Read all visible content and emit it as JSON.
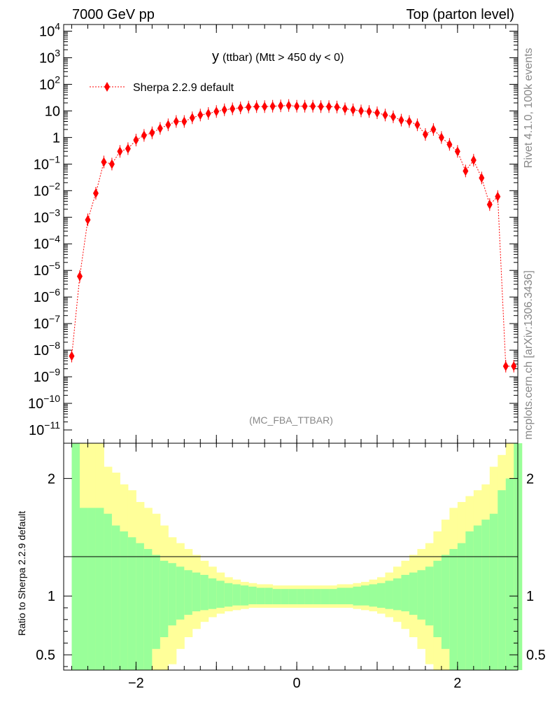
{
  "header": {
    "left": "7000 GeV pp",
    "right": "Top (parton level)"
  },
  "side_labels": {
    "rivet": "Rivet 4.1.0,  100k events",
    "mcplots": "mcplots.cern.ch [arXiv:1306.3436]"
  },
  "colors": {
    "series": "#ff0000",
    "band_inner": "#99ff99",
    "band_outer": "#ffff99"
  },
  "chart_data": [
    {
      "type": "scatter",
      "title_main": "y",
      "title_rest": " (ttbar) (Mtt > 450 dy < 0)",
      "watermark": "(MC_FBA_TTBAR)",
      "yscale": "log",
      "xlim": [
        -2.9,
        2.75
      ],
      "ylim_log10": [
        -11.5,
        4.25
      ],
      "legend": {
        "label": "Sherpa 2.2.9 default",
        "position": "top-left"
      },
      "ytick_labels": [
        {
          "exp": 4,
          "label": "10",
          "sup": "4"
        },
        {
          "exp": 3,
          "label": "10",
          "sup": "3"
        },
        {
          "exp": 2,
          "label": "10",
          "sup": "2"
        },
        {
          "exp": 1,
          "label": "10",
          "sup": ""
        },
        {
          "exp": 0,
          "label": "1",
          "sup": ""
        },
        {
          "exp": -1,
          "label": "10",
          "sup": "−1"
        },
        {
          "exp": -2,
          "label": "10",
          "sup": "−2"
        },
        {
          "exp": -3,
          "label": "10",
          "sup": "−3"
        },
        {
          "exp": -4,
          "label": "10",
          "sup": "−4"
        },
        {
          "exp": -5,
          "label": "10",
          "sup": "−5"
        },
        {
          "exp": -6,
          "label": "10",
          "sup": "−6"
        },
        {
          "exp": -7,
          "label": "10",
          "sup": "−7"
        },
        {
          "exp": -8,
          "label": "10",
          "sup": "−8"
        },
        {
          "exp": -9,
          "label": "10",
          "sup": "−9"
        },
        {
          "exp": -10,
          "label": "10",
          "sup": "−10"
        },
        {
          "exp": -11,
          "label": "10",
          "sup": "−11"
        }
      ],
      "x": [
        -2.8,
        -2.7,
        -2.6,
        -2.5,
        -2.4,
        -2.3,
        -2.2,
        -2.1,
        -2.0,
        -1.9,
        -1.8,
        -1.7,
        -1.6,
        -1.5,
        -1.4,
        -1.3,
        -1.2,
        -1.1,
        -1.0,
        -0.9,
        -0.8,
        -0.7,
        -0.6,
        -0.5,
        -0.4,
        -0.3,
        -0.2,
        -0.1,
        0.0,
        0.1,
        0.2,
        0.3,
        0.4,
        0.5,
        0.6,
        0.7,
        0.8,
        0.9,
        1.0,
        1.1,
        1.2,
        1.3,
        1.4,
        1.5,
        1.6,
        1.7,
        1.8,
        1.9,
        2.0,
        2.1,
        2.2,
        2.3,
        2.4,
        2.5,
        2.6,
        2.7
      ],
      "y": [
        6e-09,
        6e-06,
        0.0008,
        0.008,
        0.12,
        0.1,
        0.3,
        0.38,
        0.8,
        1.2,
        1.5,
        2.2,
        3.0,
        4.0,
        4.0,
        5.5,
        7.0,
        8.0,
        9.5,
        11.0,
        12.0,
        13.0,
        14.0,
        14.5,
        14.5,
        15.0,
        15.5,
        16.0,
        15.0,
        15.0,
        15.0,
        14.5,
        14.5,
        14.0,
        12.0,
        11.0,
        10.0,
        9.5,
        8.5,
        7.0,
        6.0,
        4.5,
        4.0,
        3.0,
        1.3,
        2.0,
        1.0,
        0.55,
        0.3,
        0.055,
        0.14,
        0.03,
        0.003,
        0.006,
        2.5e-09,
        2.5e-09
      ]
    },
    {
      "type": "area",
      "ylabel": "Ratio to Sherpa 2.2.9 default",
      "xlim": [
        -2.9,
        2.75
      ],
      "ylim": [
        0.37,
        2.3
      ],
      "xtick_labels": [
        {
          "value": -2,
          "label": "−2"
        },
        {
          "value": 0,
          "label": "0"
        },
        {
          "value": 2,
          "label": "2"
        }
      ],
      "ytick_labels": [
        {
          "value": 0.5,
          "label": "0.5"
        },
        {
          "value": 1,
          "label": "1"
        },
        {
          "value": 2,
          "label": "2"
        }
      ],
      "bin_edges_x": [
        -2.8,
        2.7
      ],
      "bin_width": 0.1,
      "inner_up": [
        2.3,
        1.75,
        1.75,
        1.75,
        1.7,
        1.6,
        1.55,
        1.5,
        1.45,
        1.4,
        1.35,
        1.3,
        1.28,
        1.25,
        1.22,
        1.2,
        1.18,
        1.15,
        1.13,
        1.11,
        1.1,
        1.09,
        1.08,
        1.07,
        1.07,
        1.06,
        1.06,
        1.06,
        1.06,
        1.06,
        1.06,
        1.06,
        1.06,
        1.07,
        1.07,
        1.08,
        1.09,
        1.1,
        1.11,
        1.13,
        1.15,
        1.18,
        1.2,
        1.22,
        1.25,
        1.3,
        1.35,
        1.4,
        1.45,
        1.55,
        1.6,
        1.65,
        1.7,
        1.9,
        2.0,
        2.3
      ],
      "inner_lo": [
        0.37,
        0.37,
        0.37,
        0.37,
        0.37,
        0.37,
        0.37,
        0.37,
        0.37,
        0.37,
        0.55,
        0.65,
        0.75,
        0.8,
        0.84,
        0.87,
        0.88,
        0.89,
        0.9,
        0.91,
        0.92,
        0.92,
        0.93,
        0.93,
        0.93,
        0.93,
        0.93,
        0.93,
        0.93,
        0.93,
        0.93,
        0.93,
        0.93,
        0.93,
        0.93,
        0.92,
        0.92,
        0.91,
        0.9,
        0.89,
        0.88,
        0.87,
        0.84,
        0.8,
        0.75,
        0.65,
        0.55,
        0.37,
        0.37,
        0.37,
        0.37,
        0.37,
        0.37,
        0.37,
        0.37,
        0.37
      ],
      "outer_up": [
        2.3,
        2.3,
        2.3,
        2.3,
        2.1,
        2.05,
        1.95,
        1.9,
        1.8,
        1.75,
        1.7,
        1.6,
        1.5,
        1.45,
        1.4,
        1.35,
        1.3,
        1.25,
        1.2,
        1.16,
        1.14,
        1.12,
        1.11,
        1.1,
        1.1,
        1.09,
        1.09,
        1.09,
        1.09,
        1.09,
        1.09,
        1.09,
        1.09,
        1.1,
        1.1,
        1.11,
        1.12,
        1.14,
        1.16,
        1.2,
        1.25,
        1.3,
        1.35,
        1.4,
        1.45,
        1.55,
        1.65,
        1.75,
        1.8,
        1.85,
        1.9,
        1.95,
        2.1,
        2.2,
        2.3,
        2.3
      ],
      "outer_lo": [
        0.37,
        0.37,
        0.37,
        0.37,
        0.37,
        0.37,
        0.37,
        0.37,
        0.37,
        0.37,
        0.37,
        0.37,
        0.42,
        0.55,
        0.65,
        0.72,
        0.78,
        0.82,
        0.85,
        0.87,
        0.88,
        0.89,
        0.9,
        0.9,
        0.9,
        0.9,
        0.9,
        0.9,
        0.9,
        0.9,
        0.9,
        0.9,
        0.9,
        0.9,
        0.9,
        0.89,
        0.88,
        0.87,
        0.85,
        0.82,
        0.78,
        0.72,
        0.65,
        0.55,
        0.42,
        0.37,
        0.37,
        0.37,
        0.37,
        0.37,
        0.37,
        0.37,
        0.37,
        0.37,
        0.37,
        0.37
      ]
    }
  ]
}
